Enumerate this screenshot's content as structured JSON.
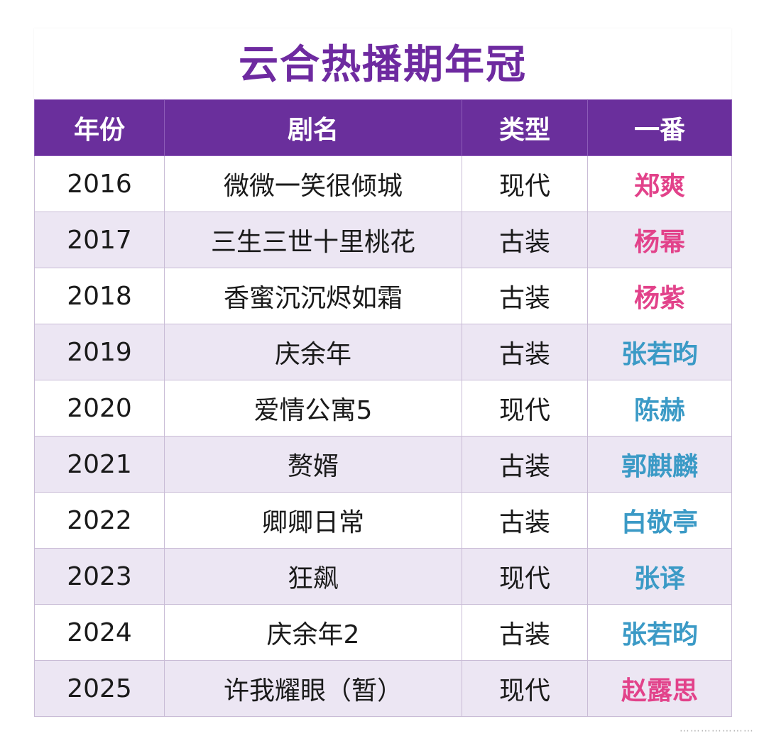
{
  "title": "云合热播期年冠",
  "colors": {
    "title": "#6e2aa0",
    "header_bg": "#6a2f9c",
    "header_text": "#ffffff",
    "alt_row_bg": "#ece6f3",
    "female_lead": "#e2428a",
    "male_lead": "#3b9ac6"
  },
  "table": {
    "headers": [
      "年份",
      "剧名",
      "类型",
      "一番"
    ],
    "rows": [
      {
        "year": "2016",
        "drama": "微微一笑很倾城",
        "genre": "现代",
        "lead": "郑爽",
        "lead_color": "#e2428a"
      },
      {
        "year": "2017",
        "drama": "三生三世十里桃花",
        "genre": "古装",
        "lead": "杨幂",
        "lead_color": "#e2428a"
      },
      {
        "year": "2018",
        "drama": "香蜜沉沉烬如霜",
        "genre": "古装",
        "lead": "杨紫",
        "lead_color": "#e2428a"
      },
      {
        "year": "2019",
        "drama": "庆余年",
        "genre": "古装",
        "lead": "张若昀",
        "lead_color": "#3b9ac6"
      },
      {
        "year": "2020",
        "drama": "爱情公寓5",
        "genre": "现代",
        "lead": "陈赫",
        "lead_color": "#3b9ac6"
      },
      {
        "year": "2021",
        "drama": "赘婿",
        "genre": "古装",
        "lead": "郭麒麟",
        "lead_color": "#3b9ac6"
      },
      {
        "year": "2022",
        "drama": "卿卿日常",
        "genre": "古装",
        "lead": "白敬亭",
        "lead_color": "#3b9ac6"
      },
      {
        "year": "2023",
        "drama": "狂飙",
        "genre": "现代",
        "lead": "张译",
        "lead_color": "#3b9ac6"
      },
      {
        "year": "2024",
        "drama": "庆余年2",
        "genre": "古装",
        "lead": "张若昀",
        "lead_color": "#3b9ac6"
      },
      {
        "year": "2025",
        "drama": "许我耀眼（暂）",
        "genre": "现代",
        "lead": "赵露思",
        "lead_color": "#e2428a"
      }
    ]
  },
  "watermark": "⋯⋯⋯⋯⋯⋯⋯"
}
